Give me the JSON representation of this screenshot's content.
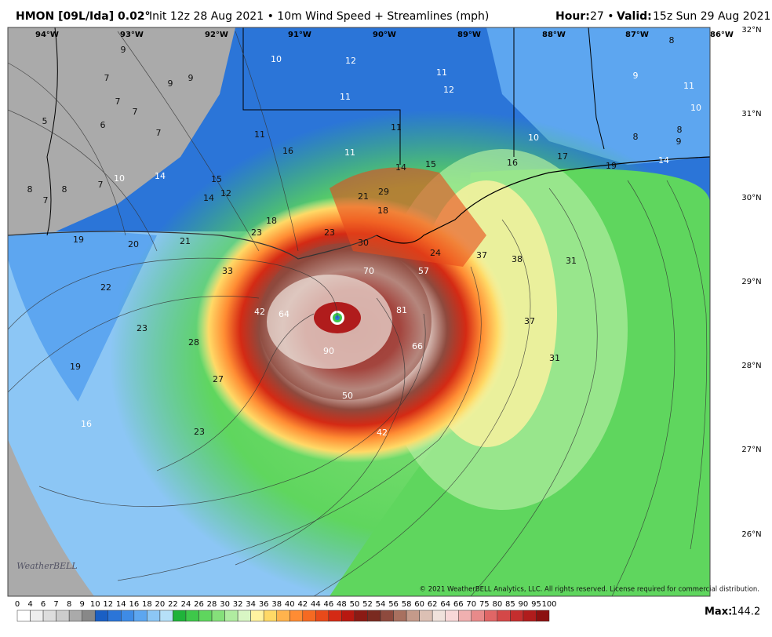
{
  "header": {
    "model": "HMON [09L/Ida] 0.02°",
    "description": "Init 12z 28 Aug 2021 • 10m Wind Speed + Streamlines (mph)",
    "hour_label": "Hour:",
    "hour_value": "27 •",
    "valid_label": "Valid:",
    "valid_value": "15z Sun 29 Aug 2021"
  },
  "longitudes": [
    "94°W",
    "93°W",
    "92°W",
    "91°W",
    "90°W",
    "89°W",
    "88°W",
    "87°W",
    "86°W"
  ],
  "latitudes": [
    "32°N",
    "31°N",
    "30°N",
    "29°N",
    "28°N",
    "27°N",
    "26°N"
  ],
  "map_labels": [
    9,
    7,
    7,
    7,
    5,
    6,
    7,
    9,
    9,
    10,
    12,
    11,
    12,
    11,
    9,
    11,
    10,
    8,
    11,
    16,
    11,
    11,
    10,
    8,
    9,
    8,
    14,
    15,
    16,
    17,
    19,
    14,
    10,
    14,
    15,
    12,
    14,
    8,
    7,
    8,
    7,
    29,
    21,
    18,
    18,
    23,
    21,
    19,
    20,
    23,
    30,
    24,
    37,
    38,
    31,
    33,
    70,
    57,
    22,
    42,
    64,
    81,
    23,
    28,
    66,
    37,
    90,
    19,
    31,
    27,
    50,
    16,
    23,
    42
  ],
  "copyright": "© 2021 WeatherBELL Analytics, LLC. All rights reserved. License required for commercial distribution.",
  "logo": "WeatherBELL",
  "colorbar": {
    "ticks": [
      0,
      4,
      6,
      7,
      8,
      9,
      10,
      12,
      14,
      16,
      18,
      20,
      22,
      24,
      26,
      28,
      30,
      32,
      34,
      36,
      38,
      40,
      42,
      44,
      46,
      48,
      50,
      52,
      54,
      56,
      58,
      60,
      62,
      64,
      66,
      70,
      75,
      80,
      85,
      90,
      95,
      100
    ],
    "colors": [
      "#ffffff",
      "#eeeeee",
      "#dddddd",
      "#cccccc",
      "#aaaaaa",
      "#888888",
      "#1a5fc4",
      "#2b75d8",
      "#3e8be6",
      "#5da6f0",
      "#8cc6f5",
      "#b6e0f8",
      "#1fb33a",
      "#3ec74a",
      "#5fd65e",
      "#85e07a",
      "#b0eca0",
      "#d8f6c4",
      "#fff3a0",
      "#ffd966",
      "#ffb34d",
      "#ff8c33",
      "#f56a22",
      "#e84a1a",
      "#d42a14",
      "#b81810",
      "#8b1a14",
      "#7a2a20",
      "#8e4a3e",
      "#a8705f",
      "#c49a8a",
      "#dcc0b4",
      "#f0e2dc",
      "#f8d8d8",
      "#f0b0b0",
      "#e88a8a",
      "#e06666",
      "#d44848",
      "#c42e2e",
      "#b01c1c",
      "#8c1010"
    ]
  },
  "max_label": "Max:",
  "max_value": 144.2
}
